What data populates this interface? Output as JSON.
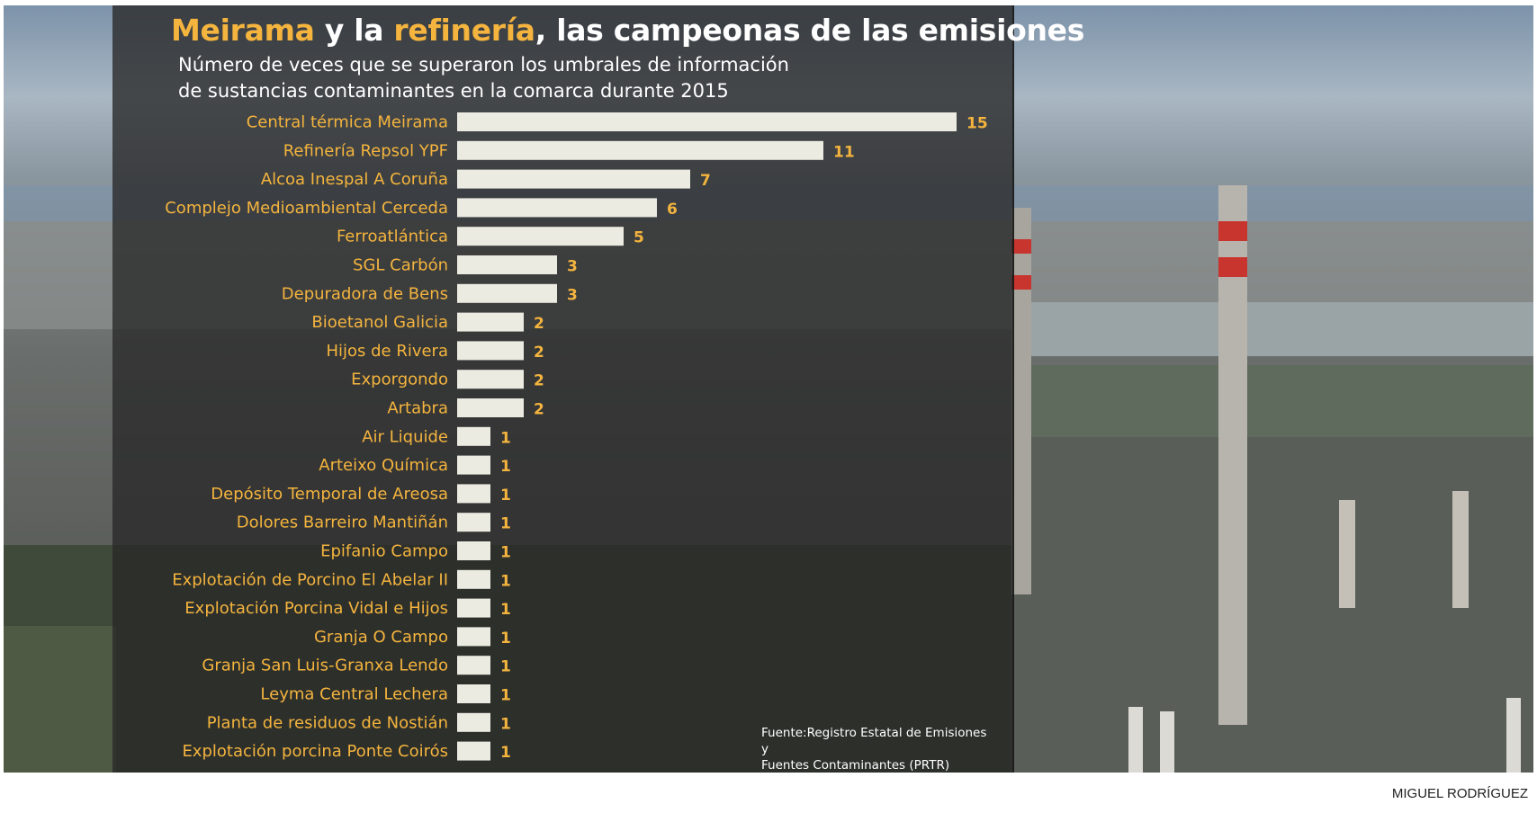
{
  "title": {
    "part1": "Meirama",
    "part2": " y la ",
    "part3": "refinería",
    "part4": ", las campeonas de las emisiones"
  },
  "subtitle_line1": "Número de veces que se superaron los umbrales de información",
  "subtitle_line2": "de sustancias contaminantes en la comarca durante 2015",
  "source_line1": "Fuente:Registro Estatal de Emisiones y",
  "source_line2": "Fuentes Contaminantes (PRTR)",
  "credit": "MIGUEL RODRÍGUEZ",
  "colors": {
    "bar": "#ecebe2",
    "label": "#f4b43e",
    "value": "#f4b43e",
    "title_highlight": "#f4b43e"
  },
  "chart_data": {
    "type": "bar",
    "orientation": "horizontal",
    "categories": [
      "Central térmica Meirama",
      "Refinería Repsol YPF",
      "Alcoa Inespal A Coruña",
      "Complejo Medioambiental Cerceda",
      "Ferroatlántica",
      "SGL Carbón",
      "Depuradora de Bens",
      "Bioetanol Galicia",
      "Hijos de Rivera",
      "Exporgondo",
      "Artabra",
      "Air Liquide",
      "Arteixo Química",
      "Depósito Temporal de Areosa",
      "Dolores Barreiro Mantiñán",
      "Epifanio Campo",
      "Explotación de Porcino El Abelar II",
      "Explotación Porcina Vidal e Hijos",
      "Granja O Campo",
      "Granja San Luis-Granxa Lendo",
      "Leyma Central Lechera",
      "Planta de residuos de Nostián",
      "Explotación porcina Ponte Coirós"
    ],
    "values": [
      15,
      11,
      7,
      6,
      5,
      3,
      3,
      2,
      2,
      2,
      2,
      1,
      1,
      1,
      1,
      1,
      1,
      1,
      1,
      1,
      1,
      1,
      1
    ],
    "xlim": [
      0,
      15
    ],
    "grid": false,
    "legend": "none"
  }
}
